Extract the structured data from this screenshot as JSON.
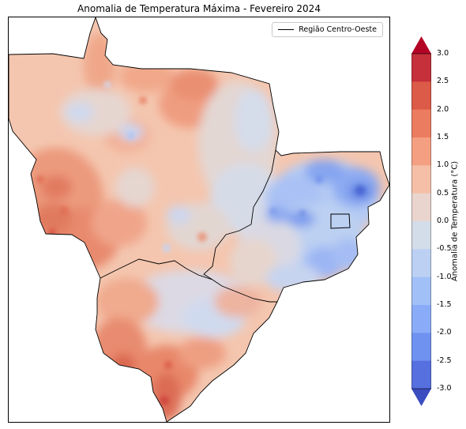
{
  "title": "Anomalia de Temperatura Máxima - Fevereiro 2024",
  "legend": {
    "label": "Região Centro-Oeste"
  },
  "colorbar": {
    "label": "Anomalia de Temperatura (°C)",
    "ticks": [
      "3.0",
      "2.5",
      "2.0",
      "1.5",
      "1.0",
      "0.5",
      "0.0",
      "-0.5",
      "-1.0",
      "-1.5",
      "-2.0",
      "-2.5",
      "-3.0"
    ],
    "colors": [
      "#c6303a",
      "#dc5a48",
      "#ec7c60",
      "#f49f82",
      "#f5bfa7",
      "#e9d5cd",
      "#d3dce9",
      "#bbd0f3",
      "#a2c0f8",
      "#8aacf8",
      "#6f92f0",
      "#5670e0"
    ],
    "extend_over_color": "#b40426",
    "extend_under_color": "#3b4cc0"
  },
  "colors": {
    "base_warm": "#f4c6af",
    "warm_mid": "#f0a081",
    "warm_strong": "#e47a5e",
    "warm_deep": "#d0473f",
    "neutral": "#e7d7cf",
    "cool_light": "#d1dbee",
    "cool_mid": "#a9c2f5",
    "cool_strong": "#7397ee",
    "cool_deep": "#4a66d3"
  }
}
